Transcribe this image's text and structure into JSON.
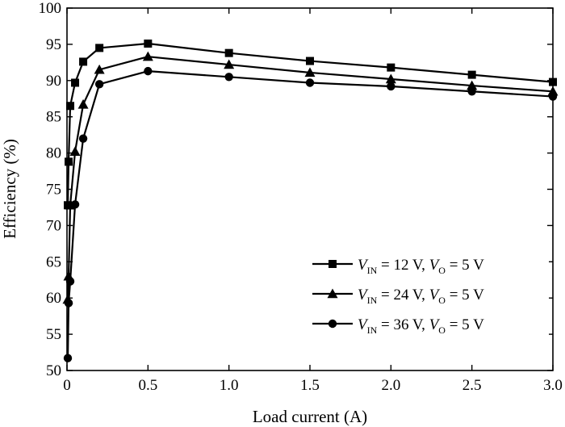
{
  "chart_data": {
    "type": "line",
    "title": "",
    "xlabel": "Load current (A)",
    "ylabel": "Efficiency (%)",
    "xlim": [
      0,
      3.0
    ],
    "ylim": [
      50,
      100
    ],
    "x_ticks": [
      "0",
      "0.5",
      "1.0",
      "1.5",
      "2.0",
      "2.5",
      "3.0"
    ],
    "x_tick_values": [
      0,
      0.5,
      1.0,
      1.5,
      2.0,
      2.5,
      3.0
    ],
    "y_ticks": [
      "50",
      "55",
      "60",
      "65",
      "70",
      "75",
      "80",
      "85",
      "90",
      "95",
      "100"
    ],
    "y_tick_values": [
      50,
      55,
      60,
      65,
      70,
      75,
      80,
      85,
      90,
      95,
      100
    ],
    "grid": false,
    "legend_position": "bottom-right",
    "series": [
      {
        "vin_label": "V",
        "vin_sub": "IN",
        "vin_text": " = 12 V, ",
        "vo_label": "V",
        "vo_sub": "O",
        "vo_text": " = 5 V",
        "marker": "square",
        "color": "#000000",
        "x": [
          0.005,
          0.01,
          0.02,
          0.05,
          0.1,
          0.2,
          0.5,
          1.0,
          1.5,
          2.0,
          2.5,
          3.0
        ],
        "y": [
          72.8,
          78.8,
          86.5,
          89.7,
          92.6,
          94.5,
          95.1,
          93.8,
          92.7,
          91.8,
          90.8,
          89.8
        ]
      },
      {
        "vin_label": "V",
        "vin_sub": "IN",
        "vin_text": " = 24 V, ",
        "vo_label": "V",
        "vo_sub": "O",
        "vo_text": " = 5 V",
        "marker": "triangle",
        "color": "#000000",
        "x": [
          0.005,
          0.01,
          0.02,
          0.05,
          0.1,
          0.2,
          0.5,
          1.0,
          1.5,
          2.0,
          2.5,
          3.0
        ],
        "y": [
          59.8,
          63.0,
          72.8,
          80.2,
          86.7,
          91.5,
          93.3,
          92.2,
          91.1,
          90.2,
          89.3,
          88.5
        ]
      },
      {
        "vin_label": "V",
        "vin_sub": "IN",
        "vin_text": " = 36 V, ",
        "vo_label": "V",
        "vo_sub": "O",
        "vo_text": " = 5 V",
        "marker": "circle",
        "color": "#000000",
        "x": [
          0.005,
          0.01,
          0.02,
          0.05,
          0.1,
          0.2,
          0.5,
          1.0,
          1.5,
          2.0,
          2.5,
          3.0
        ],
        "y": [
          51.7,
          59.3,
          62.3,
          72.9,
          82.0,
          89.5,
          91.3,
          90.5,
          89.7,
          89.2,
          88.5,
          87.8
        ]
      }
    ]
  }
}
